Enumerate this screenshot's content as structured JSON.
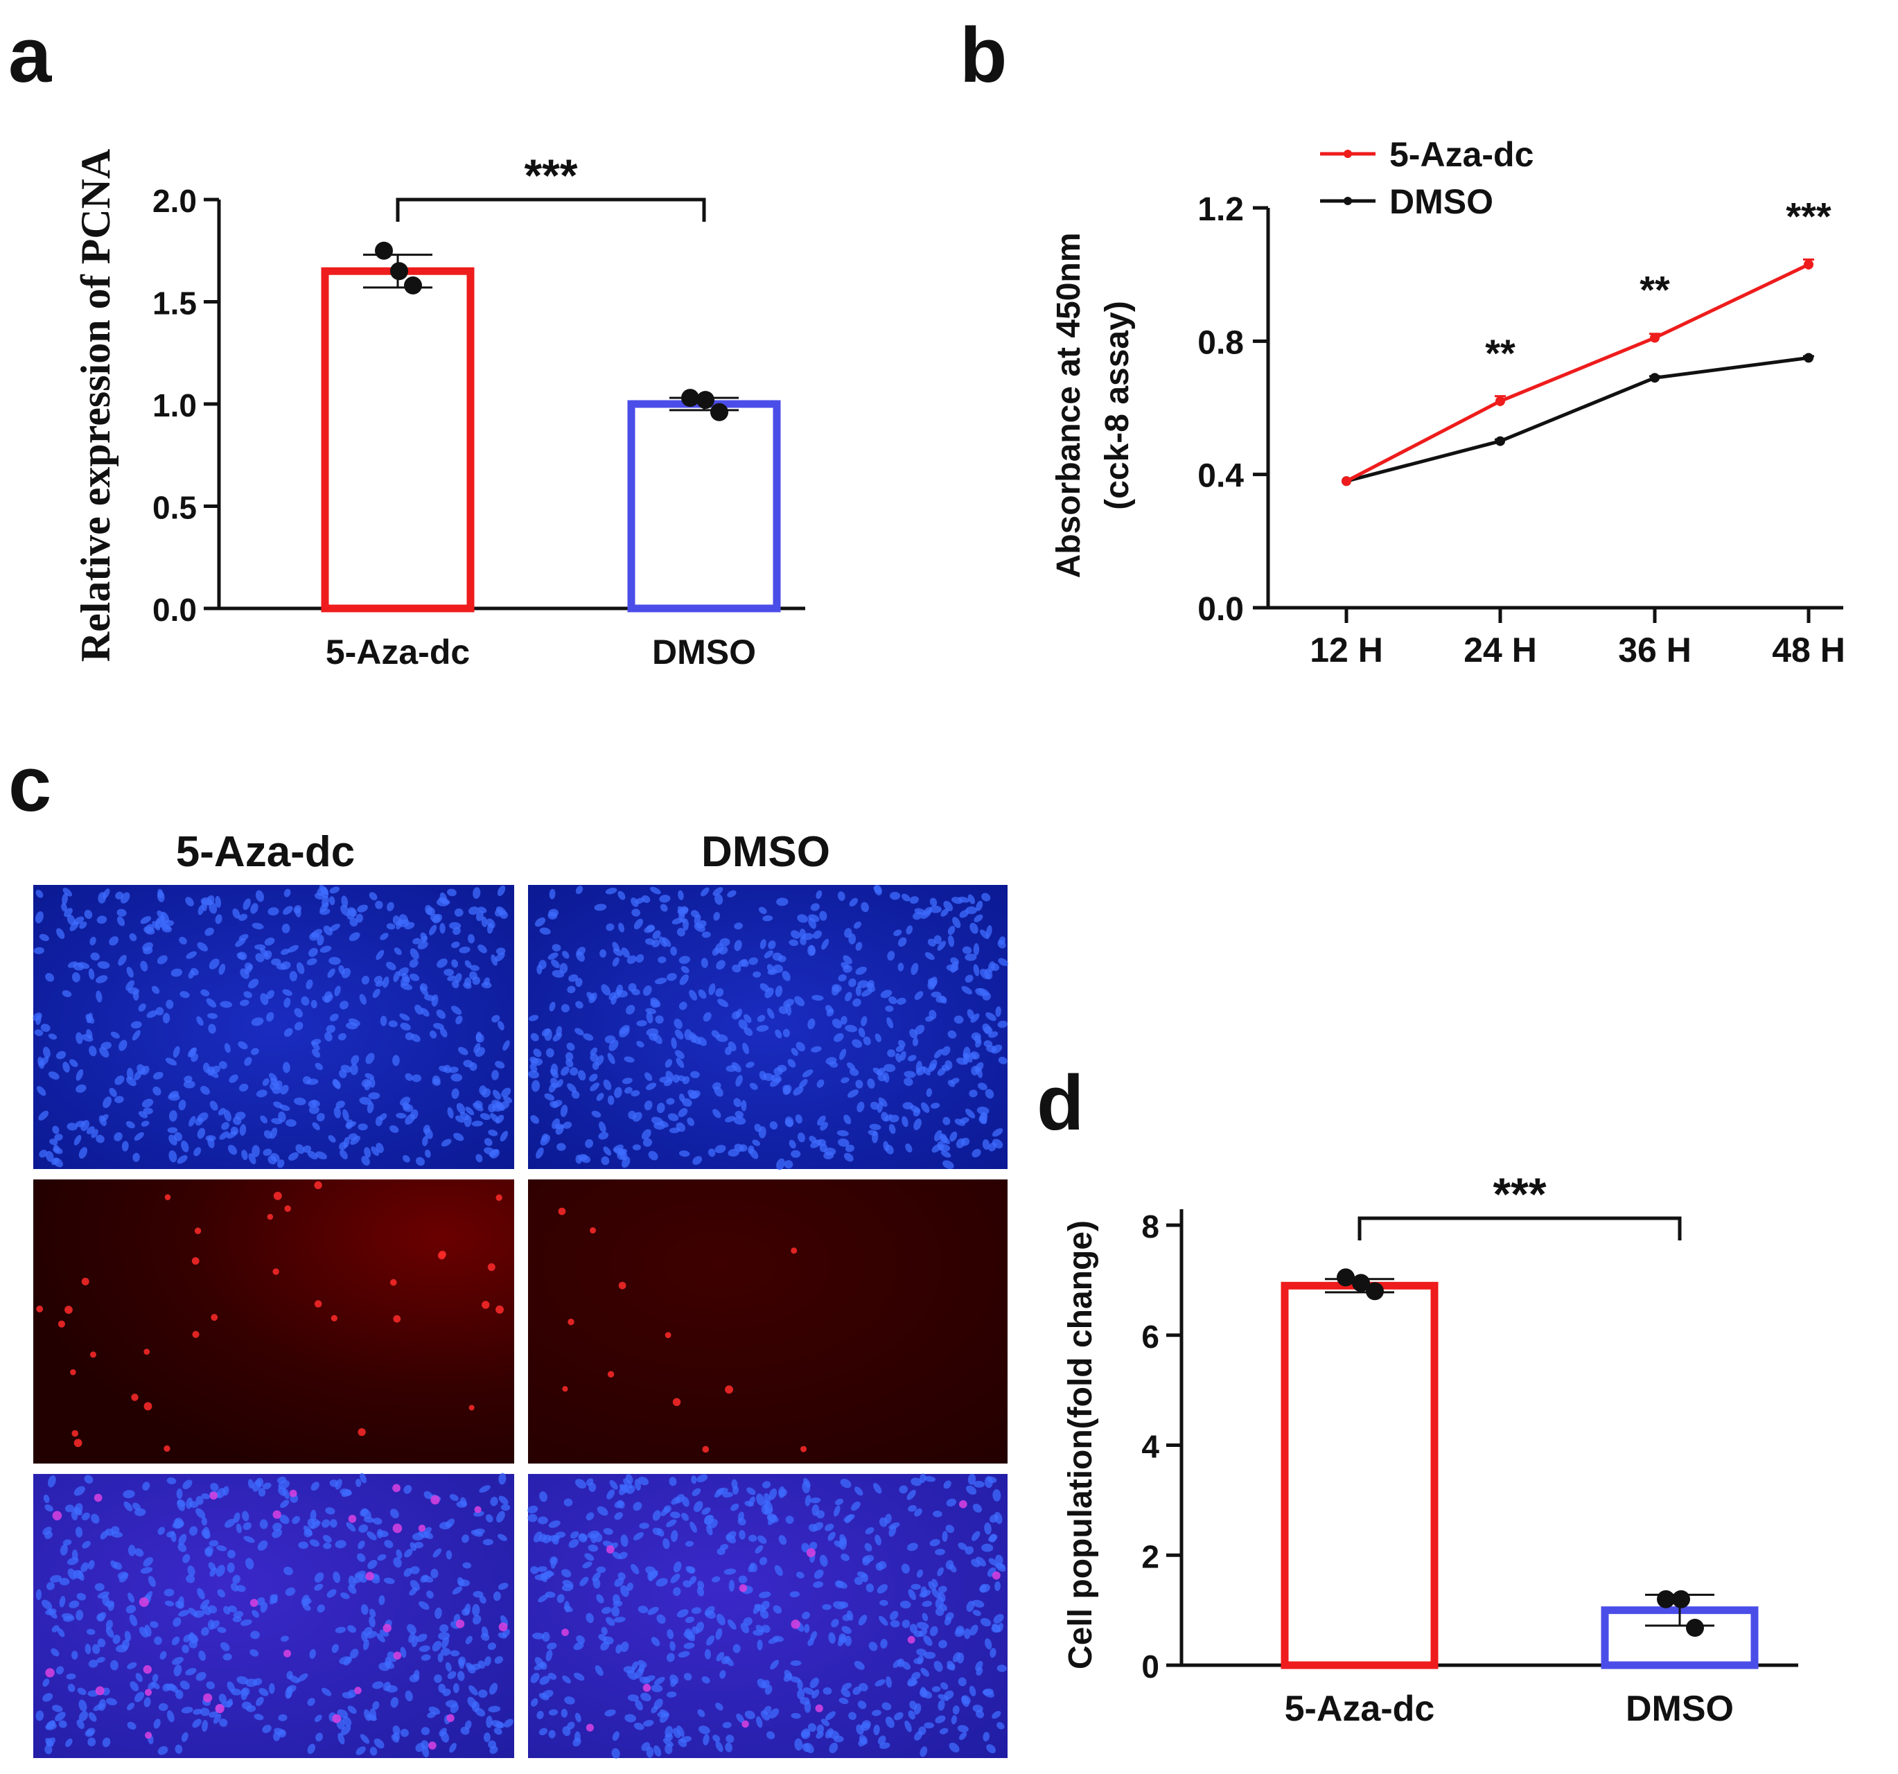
{
  "colors": {
    "series_a": "#ee1c1c",
    "series_b": "#4b4de8",
    "line_b": "#111111",
    "axis": "#111111",
    "micro_dapi_bg": "#0c1fa0",
    "micro_dapi_cell": "#3f6cff",
    "micro_edu_bg": "#2a0000",
    "micro_edu_cell": "#ff2a2a",
    "micro_merge_bg": "#2420a8",
    "micro_merge_cell": "#d040e0"
  },
  "panels": {
    "a": {
      "letter": "a"
    },
    "b": {
      "letter": "b"
    },
    "c": {
      "letter": "c",
      "col_labels": [
        "5-Aza-dc",
        "DMSO"
      ]
    },
    "d": {
      "letter": "d"
    }
  },
  "chart_data": [
    {
      "panel": "a",
      "type": "bar",
      "categories": [
        "5-Aza-dc",
        "DMSO"
      ],
      "values": [
        1.65,
        1.0
      ],
      "errors": [
        0.08,
        0.03
      ],
      "points": [
        [
          1.75,
          1.65,
          1.58
        ],
        [
          1.03,
          1.02,
          0.96
        ]
      ],
      "ylabel": "Relative expression of PCNA",
      "xlabel": "",
      "ylim": [
        0,
        2.0
      ],
      "yticks": [
        "0.0",
        "0.5",
        "1.0",
        "1.5",
        "2.0"
      ],
      "significance": "***"
    },
    {
      "panel": "b",
      "type": "line",
      "x": [
        "12 H",
        "24 H",
        "36 H",
        "48 H"
      ],
      "series": [
        {
          "name": "5-Aza-dc",
          "values": [
            0.38,
            0.62,
            0.81,
            1.03
          ],
          "errors": [
            0.0,
            0.015,
            0.012,
            0.015
          ]
        },
        {
          "name": "DMSO",
          "values": [
            0.38,
            0.5,
            0.69,
            0.75
          ],
          "errors": [
            0.0,
            0.005,
            0.005,
            0.005
          ]
        }
      ],
      "ylabel_line1": "Absorbance at 450nm",
      "ylabel_line2": "(cck-8 assay)",
      "ylim": [
        0,
        1.2
      ],
      "yticks": [
        "0.0",
        "0.4",
        "0.8",
        "1.2"
      ],
      "significance": [
        "",
        "**",
        "**",
        "***"
      ],
      "legend_position": "top-left"
    },
    {
      "panel": "d",
      "type": "bar",
      "categories": [
        "5-Aza-dc",
        "DMSO"
      ],
      "values": [
        6.9,
        1.0
      ],
      "errors": [
        0.12,
        0.28
      ],
      "points": [
        [
          7.05,
          6.95,
          6.8
        ],
        [
          1.2,
          1.2,
          0.68
        ]
      ],
      "ylabel": "Cell population(fold change)",
      "xlabel": "",
      "ylim": [
        0,
        8
      ],
      "yticks": [
        "0",
        "2",
        "4",
        "6",
        "8"
      ],
      "significance": "***"
    }
  ]
}
